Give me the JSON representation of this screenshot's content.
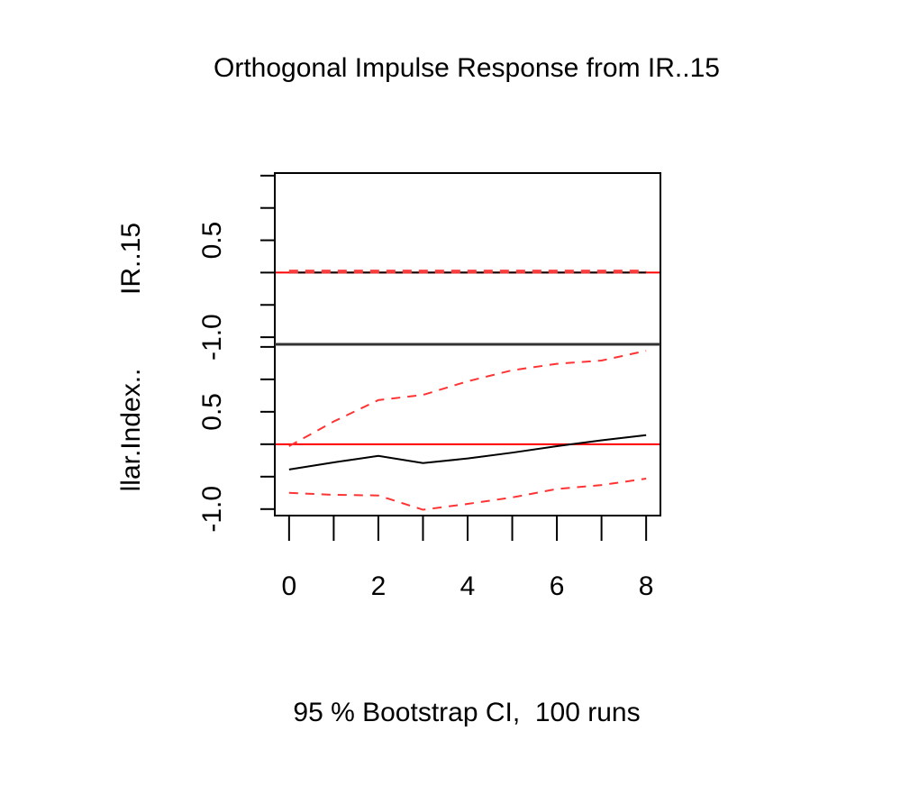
{
  "chart_data": {
    "type": "line",
    "title": "Orthogonal Impulse Response from IR..15",
    "xlabel": "95 % Bootstrap CI,  100 runs",
    "x": [
      0,
      1,
      2,
      3,
      4,
      5,
      6,
      7,
      8
    ],
    "xlim": [
      -0.32,
      8.32
    ],
    "xticks": [
      0,
      {
        "value": 1,
        "label": null
      },
      2,
      {
        "value": 3,
        "label": null
      },
      4,
      {
        "value": 5,
        "label": null
      },
      6,
      {
        "value": 7,
        "label": null
      },
      8
    ],
    "panels": [
      {
        "ylabel": "IR..15",
        "ylim": [
          -1.11,
          1.54
        ],
        "reference_line": 0,
        "yticks": [
          {
            "value": -1.0,
            "label": "-1.0"
          },
          {
            "value": -0.5,
            "label": null
          },
          {
            "value": 0,
            "label": null
          },
          {
            "value": 0.5,
            "label": "0.5"
          },
          {
            "value": 1.0,
            "label": null
          },
          {
            "value": 1.5,
            "label": null
          }
        ],
        "series": [
          {
            "name": "response",
            "color": "#000000",
            "dash": false,
            "values": [
              0,
              0,
              0,
              0,
              0,
              0,
              0,
              0,
              0
            ]
          },
          {
            "name": "upper",
            "color": "#ff3333",
            "dash": true,
            "values": [
              0.03,
              0.03,
              0.03,
              0.03,
              0.03,
              0.03,
              0.03,
              0.03,
              0.03
            ]
          },
          {
            "name": "lower",
            "color": "#ff3333",
            "dash": true,
            "values": [
              0,
              0,
              0,
              0,
              0,
              0,
              0,
              0,
              0
            ]
          }
        ]
      },
      {
        "ylabel": "llar.Index..",
        "ylim": [
          -1.1,
          1.54
        ],
        "reference_line": 0,
        "yticks": [
          {
            "value": -1.0,
            "label": "-1.0"
          },
          {
            "value": -0.5,
            "label": null
          },
          {
            "value": 0,
            "label": null
          },
          {
            "value": 0.5,
            "label": "0.5"
          },
          {
            "value": 1.0,
            "label": null
          },
          {
            "value": 1.5,
            "label": null
          }
        ],
        "series": [
          {
            "name": "response",
            "color": "#000000",
            "dash": false,
            "values": [
              -0.39,
              -0.28,
              -0.18,
              -0.29,
              -0.22,
              -0.13,
              -0.03,
              0.06,
              0.14
            ]
          },
          {
            "name": "upper",
            "color": "#ff3333",
            "dash": true,
            "values": [
              -0.03,
              0.35,
              0.68,
              0.76,
              0.97,
              1.14,
              1.24,
              1.29,
              1.44
            ]
          },
          {
            "name": "lower",
            "color": "#ff3333",
            "dash": true,
            "values": [
              -0.75,
              -0.78,
              -0.79,
              -1.01,
              -0.92,
              -0.82,
              -0.69,
              -0.63,
              -0.53
            ]
          }
        ]
      }
    ]
  }
}
